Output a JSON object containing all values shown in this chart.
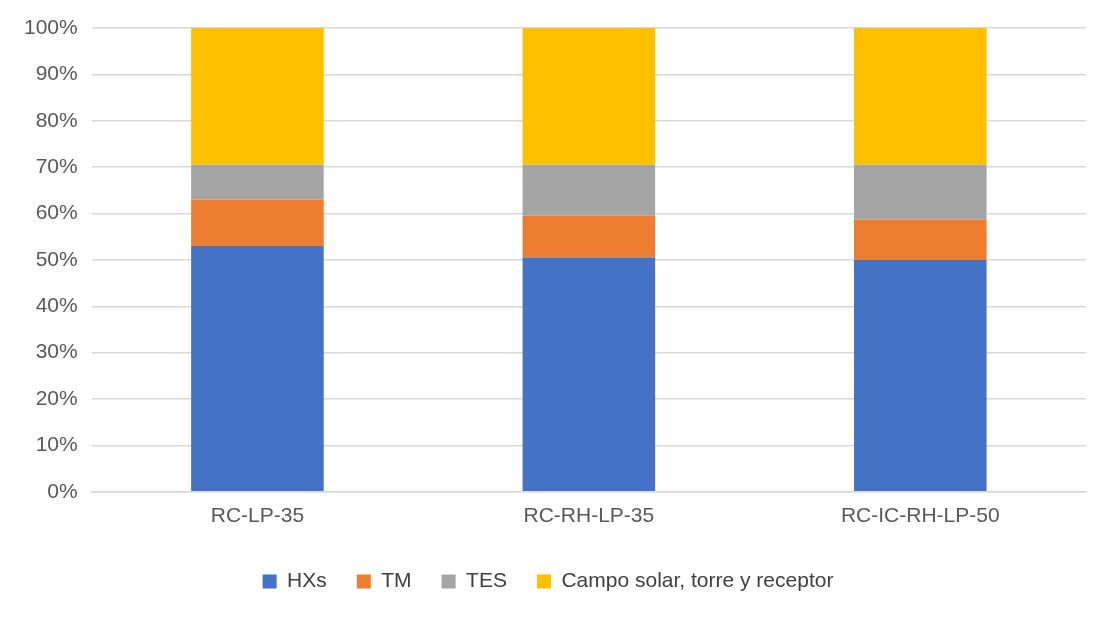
{
  "chart_data": {
    "type": "bar",
    "stacked": true,
    "categories": [
      "RC-LP-35",
      "RC-RH-LP-35",
      "RC-IC-RH-LP-50"
    ],
    "series": [
      {
        "name": "HXs",
        "color": "#4472c4",
        "values": [
          53,
          50.5,
          50
        ]
      },
      {
        "name": "TM",
        "color": "#ed7d31",
        "values": [
          10,
          9,
          8.7
        ]
      },
      {
        "name": "TES",
        "color": "#a5a5a5",
        "values": [
          7.5,
          11,
          11.8
        ]
      },
      {
        "name": "Campo solar, torre y receptor",
        "color": "#ffc000",
        "values": [
          29.5,
          29.5,
          29.5
        ]
      }
    ],
    "ylim": [
      0,
      100
    ],
    "yticks": [
      {
        "value": 0,
        "label": "0%"
      },
      {
        "value": 10,
        "label": "10%"
      },
      {
        "value": 20,
        "label": "20%"
      },
      {
        "value": 30,
        "label": "30%"
      },
      {
        "value": 40,
        "label": "40%"
      },
      {
        "value": 50,
        "label": "50%"
      },
      {
        "value": 60,
        "label": "60%"
      },
      {
        "value": 70,
        "label": "70%"
      },
      {
        "value": 80,
        "label": "80%"
      },
      {
        "value": 90,
        "label": "90%"
      },
      {
        "value": 100,
        "label": "100%"
      }
    ],
    "grid": "y",
    "legend": "bottom"
  }
}
